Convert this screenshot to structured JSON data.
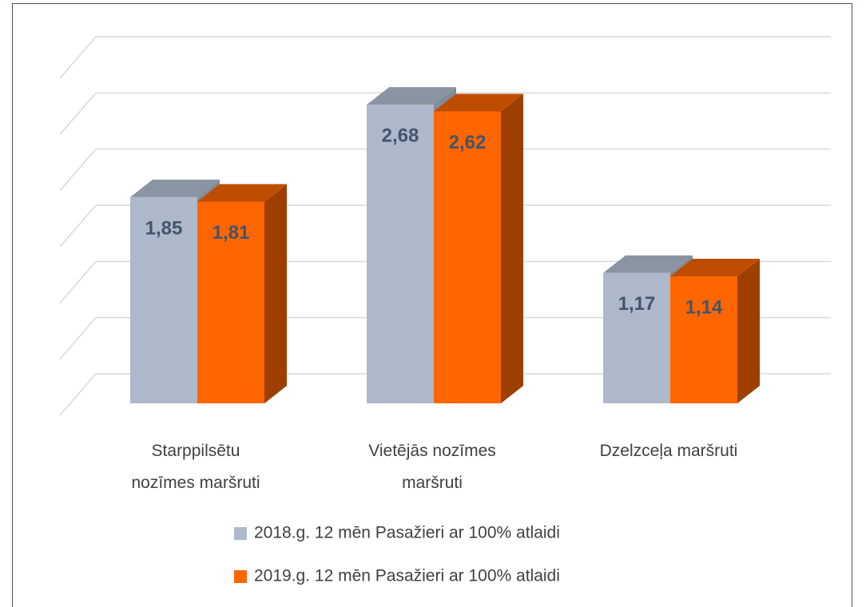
{
  "chart_data": {
    "type": "bar3d",
    "categories": [
      "Starppilsētu nozīmes maršruti",
      "Vietējās nozīmes maršruti",
      "Dzelzceļa maršruti"
    ],
    "series": [
      {
        "name": "2018.g. 12 mēn Pasažieri ar 100% atlaidi",
        "color": "#adb9ca",
        "values": [
          1.85,
          2.68,
          1.17
        ],
        "value_labels": [
          "1,85",
          "2,68",
          "1,17"
        ]
      },
      {
        "name": "2019.g. 12 mēn Pasažieri ar 100% atlaidi",
        "color": "#ff6600",
        "values": [
          1.81,
          2.62,
          1.14
        ],
        "value_labels": [
          "1,81",
          "2,62",
          "1,14"
        ]
      }
    ],
    "ylim": [
      0,
      3
    ],
    "yticks": [
      0,
      0.5,
      1,
      1.5,
      2,
      2.5,
      3
    ],
    "grid": true
  }
}
